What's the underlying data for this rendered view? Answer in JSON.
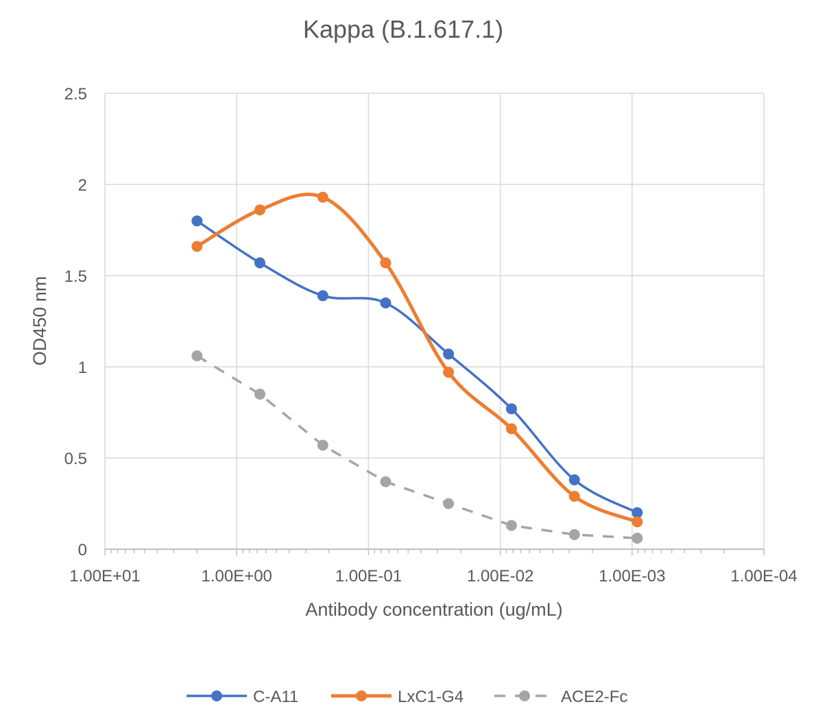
{
  "chart_data": {
    "type": "line",
    "title": "Kappa (B.1.617.1)",
    "xlabel": "Antibody concentration (ug/mL)",
    "ylabel": "OD450 nm",
    "x_scale": "log",
    "x_reversed": true,
    "xlim": [
      10,
      0.0001
    ],
    "ylim": [
      0,
      2.5
    ],
    "y_ticks": [
      "0",
      "0.5",
      "1",
      "1.5",
      "2",
      "2.5"
    ],
    "y_tick_values": [
      0,
      0.5,
      1,
      1.5,
      2,
      2.5
    ],
    "x_ticks": [
      "1.00E+01",
      "1.00E+00",
      "1.00E-01",
      "1.00E-02",
      "1.00E-03",
      "1.00E-04"
    ],
    "x_tick_values": [
      10,
      1,
      0.1,
      0.01,
      0.001,
      0.0001
    ],
    "x": [
      2,
      0.667,
      0.222,
      0.0741,
      0.0247,
      0.00823,
      0.00274,
      0.000914
    ],
    "grid": true,
    "legend_position": "bottom",
    "series": [
      {
        "name": "C-A11",
        "color": "#4472C4",
        "dashed": false,
        "smooth": true,
        "values": [
          1.8,
          1.57,
          1.39,
          1.35,
          1.07,
          0.77,
          0.38,
          0.2
        ]
      },
      {
        "name": "LxC1-G4",
        "color": "#ED7D31",
        "dashed": false,
        "smooth": true,
        "values": [
          1.66,
          1.86,
          1.93,
          1.57,
          0.97,
          0.66,
          0.29,
          0.15
        ]
      },
      {
        "name": "ACE2-Fc",
        "color": "#A5A5A5",
        "dashed": true,
        "smooth": false,
        "values": [
          1.06,
          0.85,
          0.57,
          0.37,
          0.25,
          0.13,
          0.08,
          0.06
        ]
      }
    ]
  }
}
